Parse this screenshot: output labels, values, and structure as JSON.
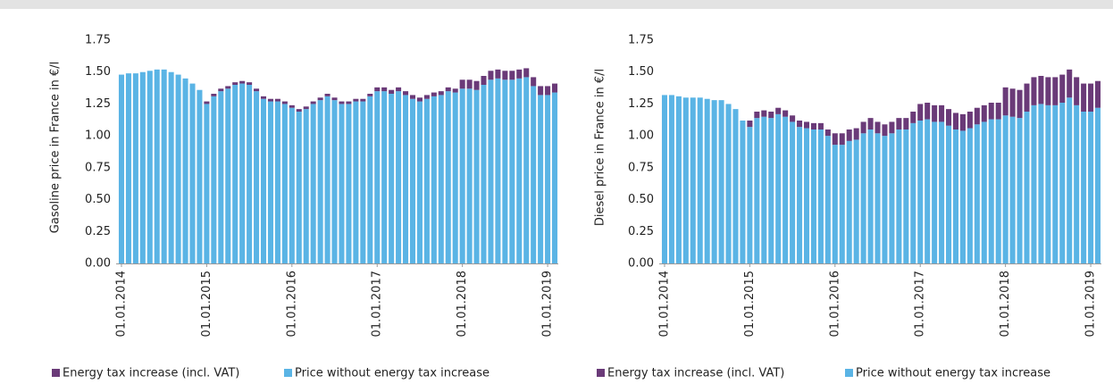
{
  "chart_data": [
    {
      "type": "bar",
      "stacked": true,
      "ylabel": "Gasoline  price in France in €/l",
      "categories": [
        "01.01.2014",
        null,
        null,
        null,
        null,
        null,
        null,
        null,
        null,
        null,
        null,
        null,
        "01.01.2015",
        null,
        null,
        null,
        null,
        null,
        null,
        null,
        null,
        null,
        null,
        null,
        "01.01.2016",
        null,
        null,
        null,
        null,
        null,
        null,
        null,
        null,
        null,
        null,
        null,
        "01.01.2017",
        null,
        null,
        null,
        null,
        null,
        null,
        null,
        null,
        null,
        null,
        null,
        "01.01.2018",
        null,
        null,
        null,
        null,
        null,
        null,
        null,
        null,
        null,
        null,
        null,
        "01.01.2019",
        null
      ],
      "series": [
        {
          "name": "Price without energy tax increase",
          "color": "#5ab4e5",
          "values": [
            1.48,
            1.49,
            1.49,
            1.5,
            1.51,
            1.52,
            1.52,
            1.5,
            1.48,
            1.45,
            1.41,
            1.36,
            1.25,
            1.31,
            1.35,
            1.37,
            1.4,
            1.41,
            1.4,
            1.35,
            1.29,
            1.27,
            1.27,
            1.25,
            1.22,
            1.19,
            1.21,
            1.25,
            1.28,
            1.31,
            1.28,
            1.25,
            1.25,
            1.27,
            1.27,
            1.31,
            1.35,
            1.35,
            1.33,
            1.35,
            1.32,
            1.29,
            1.27,
            1.29,
            1.31,
            1.32,
            1.35,
            1.34,
            1.37,
            1.37,
            1.36,
            1.4,
            1.44,
            1.45,
            1.44,
            1.44,
            1.45,
            1.46,
            1.39,
            1.32,
            1.32,
            1.34
          ]
        },
        {
          "name": "Energy tax increase (incl. VAT)",
          "color": "#6a3a78",
          "values": [
            0,
            0,
            0,
            0,
            0,
            0,
            0,
            0,
            0,
            0,
            0,
            0,
            0.02,
            0.02,
            0.02,
            0.02,
            0.02,
            0.02,
            0.02,
            0.02,
            0.02,
            0.02,
            0.02,
            0.02,
            0.02,
            0.02,
            0.02,
            0.02,
            0.02,
            0.02,
            0.02,
            0.02,
            0.02,
            0.02,
            0.02,
            0.02,
            0.03,
            0.03,
            0.03,
            0.03,
            0.03,
            0.03,
            0.03,
            0.03,
            0.03,
            0.03,
            0.03,
            0.03,
            0.07,
            0.07,
            0.07,
            0.07,
            0.07,
            0.07,
            0.07,
            0.07,
            0.07,
            0.07,
            0.07,
            0.07,
            0.07,
            0.07
          ]
        }
      ],
      "ylim": [
        0,
        1.75
      ],
      "yticks": [
        {
          "value": 0,
          "label": "0.00"
        },
        0.25,
        {
          "value": 0.5,
          "label": "0.50"
        },
        0.75,
        {
          "value": 1,
          "label": "1.00"
        },
        1.25,
        {
          "value": 1.5,
          "label": "1.50"
        },
        1.75
      ],
      "grid": false
    },
    {
      "type": "bar",
      "stacked": true,
      "ylabel": "Diesel price in France in €/l",
      "categories": [
        "01.01.2014",
        null,
        null,
        null,
        null,
        null,
        null,
        null,
        null,
        null,
        null,
        null,
        "01.01.2015",
        null,
        null,
        null,
        null,
        null,
        null,
        null,
        null,
        null,
        null,
        null,
        "01.01.2016",
        null,
        null,
        null,
        null,
        null,
        null,
        null,
        null,
        null,
        null,
        null,
        "01.01.2017",
        null,
        null,
        null,
        null,
        null,
        null,
        null,
        null,
        null,
        null,
        null,
        "01.01.2018",
        null,
        null,
        null,
        null,
        null,
        null,
        null,
        null,
        null,
        null,
        null,
        "01.01.2019",
        null
      ],
      "series": [
        {
          "name": "Price without energy tax increase",
          "color": "#5ab4e5",
          "values": [
            1.32,
            1.32,
            1.31,
            1.3,
            1.3,
            1.3,
            1.29,
            1.28,
            1.28,
            1.25,
            1.21,
            1.12,
            1.07,
            1.14,
            1.15,
            1.14,
            1.17,
            1.15,
            1.11,
            1.07,
            1.06,
            1.05,
            1.05,
            1.0,
            0.93,
            0.93,
            0.96,
            0.97,
            1.02,
            1.05,
            1.02,
            1.0,
            1.02,
            1.05,
            1.05,
            1.1,
            1.12,
            1.13,
            1.11,
            1.11,
            1.08,
            1.05,
            1.04,
            1.06,
            1.09,
            1.11,
            1.13,
            1.13,
            1.16,
            1.15,
            1.14,
            1.19,
            1.24,
            1.25,
            1.24,
            1.24,
            1.26,
            1.3,
            1.24,
            1.19,
            1.19,
            1.22
          ]
        },
        {
          "name": "Energy tax increase (incl. VAT)",
          "color": "#6a3a78",
          "values": [
            0,
            0,
            0,
            0,
            0,
            0,
            0,
            0,
            0,
            0,
            0,
            0,
            0.05,
            0.05,
            0.05,
            0.05,
            0.05,
            0.05,
            0.05,
            0.05,
            0.05,
            0.05,
            0.05,
            0.05,
            0.09,
            0.09,
            0.09,
            0.09,
            0.09,
            0.09,
            0.09,
            0.09,
            0.09,
            0.09,
            0.09,
            0.09,
            0.13,
            0.13,
            0.13,
            0.13,
            0.13,
            0.13,
            0.13,
            0.13,
            0.13,
            0.13,
            0.13,
            0.13,
            0.22,
            0.22,
            0.22,
            0.22,
            0.22,
            0.22,
            0.22,
            0.22,
            0.22,
            0.22,
            0.22,
            0.22,
            0.22,
            0.21
          ]
        }
      ],
      "ylim": [
        0,
        1.75
      ],
      "yticks": [
        {
          "value": 0,
          "label": "0.00"
        },
        0.25,
        {
          "value": 0.5,
          "label": "0.50"
        },
        0.75,
        {
          "value": 1,
          "label": "1.00"
        },
        1.25,
        {
          "value": 1.5,
          "label": "1.50"
        },
        1.75
      ],
      "grid": false
    }
  ]
}
